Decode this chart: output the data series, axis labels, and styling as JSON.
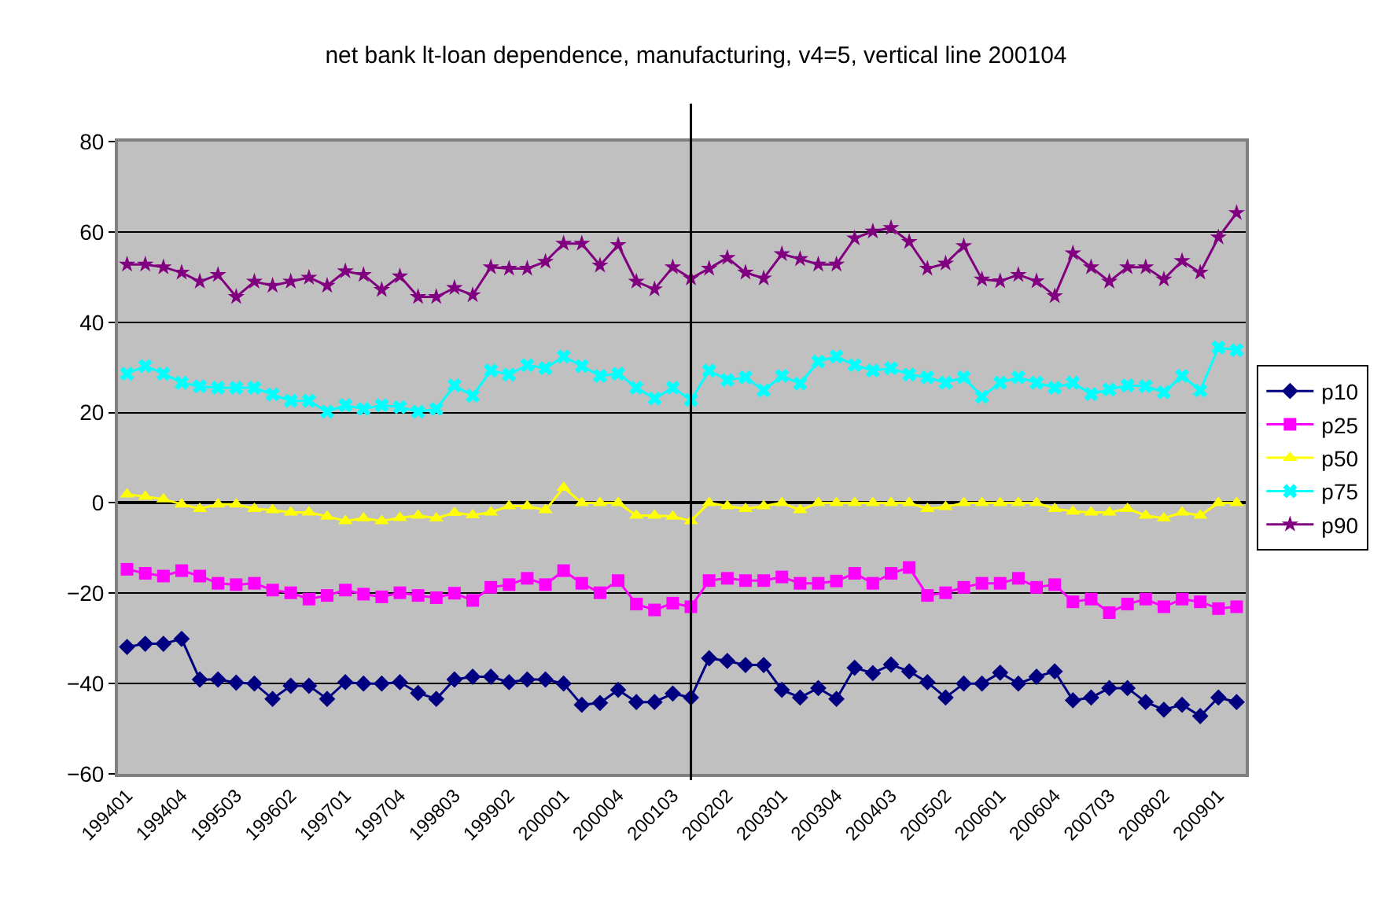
{
  "chart_data": {
    "type": "line",
    "title": "net bank lt-loan dependence, manufacturing, v4=5, vertical line 200104",
    "categories": [
      "199401",
      null,
      null,
      "199404",
      null,
      null,
      "199503",
      null,
      null,
      "199602",
      null,
      null,
      "199701",
      null,
      null,
      "199704",
      null,
      null,
      "199803",
      null,
      null,
      "199902",
      null,
      null,
      "200001",
      null,
      null,
      "200004",
      null,
      null,
      "200103",
      null,
      null,
      "200202",
      null,
      null,
      "200301",
      null,
      null,
      "200304",
      null,
      null,
      "200403",
      null,
      null,
      "200502",
      null,
      null,
      "200601",
      null,
      null,
      "200604",
      null,
      null,
      "200703",
      null,
      null,
      "200802",
      null,
      null,
      "200901",
      null
    ],
    "series": [
      {
        "name": "p10",
        "color": "#000080",
        "marker": "diamond",
        "values": [
          -31.9,
          -31.2,
          -31.2,
          -30.1,
          -39.1,
          -39.1,
          -39.8,
          -40,
          -43.4,
          -40.5,
          -40.5,
          -43.4,
          -39.7,
          -40,
          -40,
          -39.7,
          -42.1,
          -43.4,
          -39.1,
          -38.5,
          -38.5,
          -39.7,
          -39.1,
          -39.1,
          -40,
          -44.7,
          -44.3,
          -41.4,
          -44.1,
          -44.1,
          -42.2,
          -43.1,
          -34.4,
          -35,
          -35.9,
          -35.9,
          -41.4,
          -43.1,
          -41,
          -43.4,
          -36.5,
          -37.7,
          -35.8,
          -37.3,
          -39.7,
          -43.1,
          -40,
          -40,
          -37.6,
          -40,
          -38.5,
          -37.3,
          -43.7,
          -43.1,
          -41,
          -41,
          -44.1,
          -45.8,
          -44.7,
          -47.2,
          -43.1,
          -44.1
        ]
      },
      {
        "name": "p25",
        "color": "#ff00ff",
        "marker": "square",
        "values": [
          -14.7,
          -15.6,
          -16.2,
          -15,
          -16.2,
          -17.8,
          -18.1,
          -17.8,
          -19.3,
          -19.9,
          -21.3,
          -20.5,
          -19.3,
          -20.2,
          -20.8,
          -19.9,
          -20.5,
          -21,
          -20,
          -21.6,
          -18.7,
          -18.1,
          -16.7,
          -18.1,
          -15,
          -17.8,
          -19.9,
          -17.2,
          -22.4,
          -23.7,
          -22.2,
          -23,
          -17.2,
          -16.7,
          -17.2,
          -17.2,
          -16.4,
          -17.8,
          -17.8,
          -17.3,
          -15.6,
          -17.8,
          -15.6,
          -14.3,
          -20.5,
          -19.9,
          -18.7,
          -17.8,
          -17.8,
          -16.7,
          -18.7,
          -18.1,
          -21.9,
          -21.3,
          -24.3,
          -22.4,
          -21.3,
          -23,
          -21.3,
          -21.9,
          -23.4,
          -23
        ]
      },
      {
        "name": "p50",
        "color": "#ffff00",
        "marker": "triangle",
        "values": [
          1.9,
          1.4,
          0.8,
          -0.3,
          -1.3,
          -0.3,
          -0.3,
          -1.3,
          -1.6,
          -2.1,
          -2.1,
          -3,
          -4,
          -3.4,
          -4,
          -3.3,
          -2.8,
          -3.4,
          -2.2,
          -2.7,
          -2.1,
          -0.7,
          -0.7,
          -1.6,
          3.4,
          0,
          0,
          0,
          -2.8,
          -2.8,
          -3,
          -4,
          0,
          -0.7,
          -1.3,
          -0.7,
          0,
          -1.6,
          0,
          0,
          0,
          0,
          0,
          0,
          -1.3,
          -0.9,
          0,
          0,
          0,
          0,
          0,
          -1.3,
          -1.9,
          -2.1,
          -2.1,
          -1.3,
          -2.8,
          -3.4,
          -2.1,
          -2.8,
          0,
          0
        ]
      },
      {
        "name": "p75",
        "color": "#00ffff",
        "marker": "cross",
        "values": [
          28.6,
          30.3,
          28.6,
          26.6,
          25.8,
          25.5,
          25.5,
          25.5,
          24,
          22.6,
          22.6,
          20.2,
          21.6,
          20.8,
          21.6,
          21.2,
          20.2,
          20.8,
          26,
          23.7,
          29.3,
          28.4,
          30.5,
          29.8,
          32.4,
          30.3,
          28.1,
          28.6,
          25.5,
          23.1,
          25.5,
          22.8,
          29.3,
          27.2,
          27.8,
          24.9,
          28.1,
          26.4,
          31.3,
          32.4,
          30.5,
          29.3,
          29.8,
          28.4,
          27.8,
          26.6,
          27.8,
          23.5,
          26.6,
          27.8,
          26.6,
          25.5,
          26.6,
          24.1,
          25.1,
          26,
          25.8,
          24.5,
          28.1,
          24.9,
          34.4,
          33.8
        ]
      },
      {
        "name": "p90",
        "color": "#800080",
        "marker": "star",
        "values": [
          52.8,
          52.8,
          52.2,
          51,
          49,
          50.5,
          45.6,
          49,
          48.1,
          49,
          49.9,
          48.1,
          51.3,
          50.5,
          47.2,
          50.2,
          45.6,
          45.6,
          47.6,
          46,
          52.2,
          51.9,
          51.9,
          53.4,
          57.4,
          57.4,
          52.6,
          57.1,
          49,
          47.3,
          52.2,
          49.7,
          51.9,
          54.3,
          51,
          49.7,
          55.1,
          54,
          52.8,
          52.8,
          58.6,
          60.1,
          60.9,
          57.8,
          51.9,
          53,
          56.9,
          49.5,
          49.1,
          50.5,
          49.1,
          45.8,
          55.3,
          52.2,
          49,
          52.2,
          52.2,
          49.5,
          53.6,
          51,
          58.8,
          64.2
        ]
      }
    ],
    "ylim": [
      -60,
      80
    ],
    "yticks": [
      -60,
      -40,
      -20,
      0,
      20,
      40,
      60,
      80
    ],
    "grid": "y",
    "legend": "right",
    "line_style": "solid"
  }
}
